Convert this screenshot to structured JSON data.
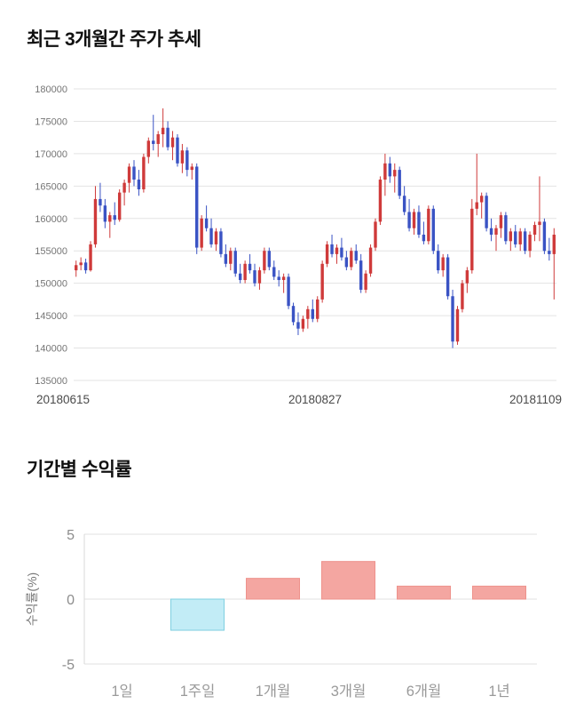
{
  "price_section": {
    "title": "최근 3개월간 주가 추세"
  },
  "returns_section": {
    "title": "기간별 수익률"
  },
  "chart_data": [
    {
      "type": "candlestick",
      "title": "최근 3개월간 주가 추세",
      "ylim": [
        135000,
        180000
      ],
      "yticks": [
        135000,
        140000,
        145000,
        150000,
        155000,
        160000,
        165000,
        170000,
        175000,
        180000
      ],
      "x_axis_labels": [
        "20180615",
        "20180827",
        "20181109"
      ],
      "up_color": "#cf3a3a",
      "down_color": "#3a53c4",
      "grid_color": "#e3e3e3",
      "tick_label_color": "#757575",
      "x_label_color": "#4a4a4a",
      "ohlc": [
        [
          152000,
          153500,
          151000,
          152800
        ],
        [
          152800,
          154000,
          152000,
          153200
        ],
        [
          153200,
          153800,
          151500,
          152000
        ],
        [
          152000,
          156500,
          151800,
          156000
        ],
        [
          156000,
          165000,
          155500,
          163000
        ],
        [
          163000,
          165500,
          161000,
          162000
        ],
        [
          162000,
          163000,
          158500,
          159500
        ],
        [
          159500,
          161000,
          157000,
          160500
        ],
        [
          160500,
          162500,
          159000,
          159800
        ],
        [
          159800,
          164500,
          159500,
          164000
        ],
        [
          164000,
          166000,
          162000,
          165500
        ],
        [
          165500,
          168500,
          164000,
          168000
        ],
        [
          168000,
          169000,
          165000,
          166000
        ],
        [
          166000,
          167500,
          163500,
          164500
        ],
        [
          164500,
          170000,
          164000,
          169500
        ],
        [
          169500,
          172500,
          168500,
          172000
        ],
        [
          172000,
          176000,
          170500,
          171500
        ],
        [
          171500,
          173500,
          169500,
          173000
        ],
        [
          173000,
          177000,
          171000,
          174000
        ],
        [
          174000,
          175000,
          170500,
          171000
        ],
        [
          171000,
          173500,
          169000,
          172500
        ],
        [
          172500,
          173000,
          168000,
          168500
        ],
        [
          168500,
          171500,
          167000,
          170500
        ],
        [
          170500,
          171000,
          166500,
          167500
        ],
        [
          167500,
          168500,
          166000,
          168000
        ],
        [
          168000,
          168500,
          154500,
          155500
        ],
        [
          155500,
          160500,
          155000,
          160000
        ],
        [
          160000,
          162000,
          158000,
          158500
        ],
        [
          158500,
          160000,
          155500,
          156000
        ],
        [
          156000,
          158500,
          155000,
          158000
        ],
        [
          158000,
          158500,
          154000,
          154500
        ],
        [
          154500,
          156000,
          152500,
          153000
        ],
        [
          153000,
          155500,
          152000,
          155000
        ],
        [
          155000,
          155500,
          151000,
          151500
        ],
        [
          151500,
          153000,
          150000,
          150500
        ],
        [
          150500,
          153500,
          150000,
          153000
        ],
        [
          153000,
          154500,
          151500,
          152000
        ],
        [
          152000,
          153000,
          149500,
          150000
        ],
        [
          150000,
          152500,
          149000,
          152000
        ],
        [
          152000,
          155500,
          151500,
          155000
        ],
        [
          155000,
          155500,
          152000,
          152500
        ],
        [
          152500,
          153500,
          150500,
          151000
        ],
        [
          151000,
          152000,
          149500,
          150500
        ],
        [
          150500,
          151500,
          148500,
          151000
        ],
        [
          151000,
          151500,
          146000,
          146500
        ],
        [
          146500,
          147000,
          143500,
          144000
        ],
        [
          144000,
          145500,
          142000,
          143000
        ],
        [
          143000,
          145000,
          142500,
          144500
        ],
        [
          144500,
          146500,
          143000,
          146000
        ],
        [
          146000,
          147500,
          144000,
          144500
        ],
        [
          144500,
          148000,
          144000,
          147500
        ],
        [
          147500,
          153500,
          147000,
          153000
        ],
        [
          153000,
          156500,
          152500,
          156000
        ],
        [
          156000,
          157500,
          154000,
          154500
        ],
        [
          154500,
          156000,
          153000,
          155500
        ],
        [
          155500,
          157000,
          153500,
          154000
        ],
        [
          154000,
          155000,
          152000,
          152500
        ],
        [
          152500,
          155500,
          152000,
          155000
        ],
        [
          155000,
          156000,
          153000,
          153500
        ],
        [
          153500,
          154500,
          148500,
          149000
        ],
        [
          149000,
          152000,
          148500,
          151500
        ],
        [
          151500,
          156000,
          151000,
          155500
        ],
        [
          155500,
          160000,
          155000,
          159500
        ],
        [
          159500,
          166500,
          159000,
          166000
        ],
        [
          166000,
          170000,
          163500,
          168500
        ],
        [
          168500,
          169500,
          165500,
          166500
        ],
        [
          166500,
          168500,
          164000,
          167500
        ],
        [
          167500,
          168000,
          163000,
          163500
        ],
        [
          163500,
          165000,
          160500,
          161000
        ],
        [
          161000,
          163000,
          158000,
          158500
        ],
        [
          158500,
          161500,
          157500,
          161000
        ],
        [
          161000,
          162000,
          157000,
          157500
        ],
        [
          157500,
          159500,
          156000,
          156500
        ],
        [
          156500,
          162000,
          156000,
          161500
        ],
        [
          161500,
          162000,
          154500,
          155000
        ],
        [
          155000,
          156000,
          151500,
          152000
        ],
        [
          152000,
          154500,
          151000,
          154000
        ],
        [
          154000,
          154500,
          147500,
          148000
        ],
        [
          148000,
          149000,
          140000,
          141000
        ],
        [
          141000,
          146500,
          140500,
          146000
        ],
        [
          146000,
          150500,
          145500,
          150000
        ],
        [
          150000,
          152500,
          148500,
          152000
        ],
        [
          152000,
          163000,
          151500,
          161500
        ],
        [
          161500,
          170000,
          160500,
          162500
        ],
        [
          162500,
          164000,
          160000,
          163500
        ],
        [
          163500,
          164000,
          158000,
          158500
        ],
        [
          158500,
          160000,
          156500,
          157500
        ],
        [
          157500,
          159000,
          155000,
          158500
        ],
        [
          158500,
          161000,
          157000,
          160500
        ],
        [
          160500,
          161000,
          156000,
          156500
        ],
        [
          156500,
          158500,
          155000,
          158000
        ],
        [
          158000,
          159000,
          155500,
          156000
        ],
        [
          156000,
          158500,
          155000,
          158000
        ],
        [
          158000,
          158500,
          154500,
          155000
        ],
        [
          155000,
          158000,
          154000,
          157500
        ],
        [
          157500,
          159500,
          156500,
          159000
        ],
        [
          159000,
          166500,
          156500,
          159500
        ],
        [
          159500,
          160000,
          154500,
          155000
        ],
        [
          155000,
          157000,
          153500,
          154500
        ],
        [
          154500,
          158500,
          147500,
          157500
        ]
      ]
    },
    {
      "type": "bar",
      "title": "기간별 수익률",
      "ylabel": "수익률(%)",
      "categories": [
        "1일",
        "1주일",
        "1개월",
        "3개월",
        "6개월",
        "1년"
      ],
      "values": [
        0,
        -2.4,
        1.6,
        2.9,
        1.0,
        1.0
      ],
      "ylim": [
        -5,
        5
      ],
      "yticks": [
        5,
        0,
        -5
      ],
      "positive_color": "#f4a6a1",
      "positive_border": "#ee928c",
      "negative_color": "#c2ecf6",
      "negative_border": "#7fcfe0",
      "grid_color": "#e0e0e0",
      "axis_color": "#d8d8d8",
      "tick_label_color": "#8c8c8c",
      "category_label_color": "#9a9a9a",
      "ylabel_color": "#7a7a7a"
    }
  ]
}
